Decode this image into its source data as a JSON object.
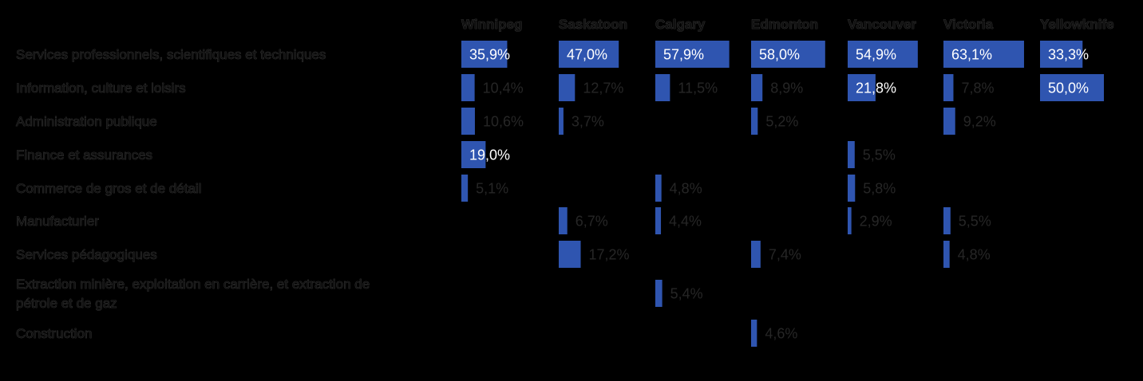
{
  "chart_data": {
    "type": "bar",
    "bar_color": "#2f55b0",
    "columns": [
      "Winnipeg",
      "Saskatoon",
      "Calgary",
      "Edmonton",
      "Vancouver",
      "Victoria",
      "Yellowknife"
    ],
    "rows": [
      {
        "label": "Services professionnels, scientifiques et techniques",
        "values": [
          35.9,
          47.0,
          57.9,
          58.0,
          54.9,
          63.1,
          33.3
        ],
        "labels": [
          "35,9%",
          "47,0%",
          "57,9%",
          "58,0%",
          "54,9%",
          "63,1%",
          "33,3%"
        ]
      },
      {
        "label": "Information, culture et loisirs",
        "values": [
          10.4,
          12.7,
          11.5,
          8.9,
          21.8,
          7.8,
          50.0
        ],
        "labels": [
          "10,4%",
          "12,7%",
          "11,5%",
          "8,9%",
          "21,8%",
          "7,8%",
          "50,0%"
        ]
      },
      {
        "label": "Administration publique",
        "values": [
          10.6,
          3.7,
          null,
          5.2,
          null,
          9.2,
          null
        ],
        "labels": [
          "10,6%",
          "3,7%",
          "",
          "5,2%",
          "",
          "9,2%",
          ""
        ]
      },
      {
        "label": "Finance et assurances",
        "values": [
          19.0,
          null,
          null,
          null,
          5.5,
          null,
          null
        ],
        "labels": [
          "19,0%",
          "",
          "",
          "",
          "5,5%",
          "",
          ""
        ]
      },
      {
        "label": "Commerce de gros et de détail",
        "values": [
          5.1,
          null,
          4.8,
          null,
          5.8,
          null,
          null
        ],
        "labels": [
          "5,1%",
          "",
          "4,8%",
          "",
          "5,8%",
          "",
          ""
        ]
      },
      {
        "label": "Manufacturier",
        "values": [
          null,
          6.7,
          4.4,
          null,
          2.9,
          5.5,
          null
        ],
        "labels": [
          "",
          "6,7%",
          "4,4%",
          "",
          "2,9%",
          "5,5%",
          ""
        ]
      },
      {
        "label": "Services pédagogiques",
        "values": [
          null,
          17.2,
          null,
          7.4,
          null,
          4.8,
          null
        ],
        "labels": [
          "",
          "17,2%",
          "",
          "7,4%",
          "",
          "4,8%",
          ""
        ]
      },
      {
        "label": "Extraction minière, exploitation en carrière, et extraction de pétrole et de gaz",
        "label_lines": [
          "Extraction minière, exploitation en carrière, et extraction de",
          "pétrole et de gaz"
        ],
        "values": [
          null,
          null,
          5.4,
          null,
          null,
          null,
          null
        ],
        "labels": [
          "",
          "",
          "5,4%",
          "",
          "",
          "",
          ""
        ]
      },
      {
        "label": "Construction",
        "values": [
          null,
          null,
          null,
          4.6,
          null,
          null,
          null
        ],
        "labels": [
          "",
          "",
          "",
          "4,6%",
          "",
          "",
          ""
        ]
      }
    ]
  }
}
